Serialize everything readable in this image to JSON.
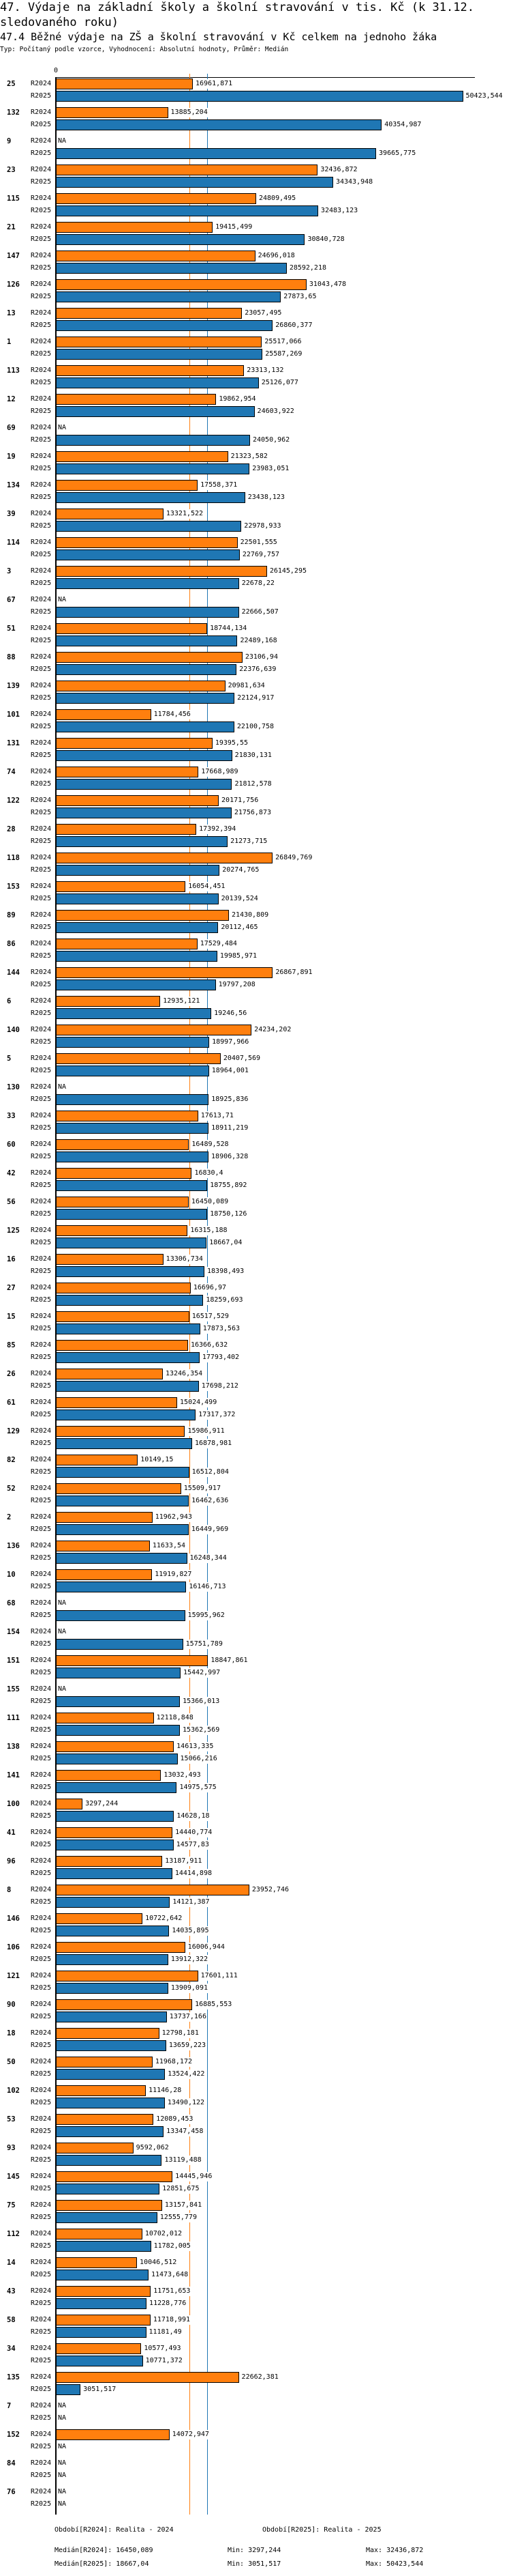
{
  "header": {
    "title": "47. Výdaje na základní školy a školní stravování v tis. Kč (k 31.12. sledovaného roku)",
    "subtitle": "47.4 Běžné výdaje na ZŠ a školní stravování v Kč celkem na jednoho žáka",
    "info": "Typ: Počítaný podle vzorce, Vyhodnocení: Absolutní hodnoty, Průměr: Medián"
  },
  "chart_data": {
    "type": "bar",
    "orientation": "horizontal",
    "title": "47.4 Běžné výdaje na ZŠ a školní stravování v Kč celkem na jednoho žáka",
    "axis_zero_label": "0",
    "xlim": [
      0,
      50423.544
    ],
    "na_label": "NA",
    "series": [
      {
        "name": "R2024",
        "color": "#ff7f0e",
        "median": 16450.089
      },
      {
        "name": "R2025",
        "color": "#1f77b4",
        "median": 18667.04
      }
    ],
    "groups": [
      {
        "id": "25",
        "values": [
          16961.871,
          50423.544
        ]
      },
      {
        "id": "132",
        "values": [
          13885.204,
          40354.987
        ]
      },
      {
        "id": "9",
        "values": [
          null,
          39665.775
        ]
      },
      {
        "id": "23",
        "values": [
          32436.872,
          34343.948
        ]
      },
      {
        "id": "115",
        "values": [
          24809.495,
          32483.123
        ]
      },
      {
        "id": "21",
        "values": [
          19415.499,
          30840.728
        ]
      },
      {
        "id": "147",
        "values": [
          24696.018,
          28592.218
        ]
      },
      {
        "id": "126",
        "values": [
          31043.478,
          27873.65
        ]
      },
      {
        "id": "13",
        "values": [
          23057.495,
          26860.377
        ]
      },
      {
        "id": "1",
        "values": [
          25517.066,
          25587.269
        ]
      },
      {
        "id": "113",
        "values": [
          23313.132,
          25126.077
        ]
      },
      {
        "id": "12",
        "values": [
          19862.954,
          24603.922
        ]
      },
      {
        "id": "69",
        "values": [
          null,
          24050.962
        ]
      },
      {
        "id": "19",
        "values": [
          21323.582,
          23983.051
        ]
      },
      {
        "id": "134",
        "values": [
          17558.371,
          23438.123
        ]
      },
      {
        "id": "39",
        "values": [
          13321.522,
          22978.933
        ]
      },
      {
        "id": "114",
        "values": [
          22501.555,
          22769.757
        ]
      },
      {
        "id": "3",
        "values": [
          26145.295,
          22678.22
        ]
      },
      {
        "id": "67",
        "values": [
          null,
          22666.507
        ]
      },
      {
        "id": "51",
        "values": [
          18744.134,
          22489.168
        ]
      },
      {
        "id": "88",
        "values": [
          23106.94,
          22376.639
        ]
      },
      {
        "id": "139",
        "values": [
          20981.634,
          22124.917
        ]
      },
      {
        "id": "101",
        "values": [
          11784.456,
          22100.758
        ]
      },
      {
        "id": "131",
        "values": [
          19395.55,
          21830.131
        ]
      },
      {
        "id": "74",
        "values": [
          17668.989,
          21812.578
        ]
      },
      {
        "id": "122",
        "values": [
          20171.756,
          21756.873
        ]
      },
      {
        "id": "28",
        "values": [
          17392.394,
          21273.715
        ]
      },
      {
        "id": "118",
        "values": [
          26849.769,
          20274.765
        ]
      },
      {
        "id": "153",
        "values": [
          16054.451,
          20139.524
        ]
      },
      {
        "id": "89",
        "values": [
          21430.809,
          20112.465
        ]
      },
      {
        "id": "86",
        "values": [
          17529.484,
          19985.971
        ]
      },
      {
        "id": "144",
        "values": [
          26867.891,
          19797.208
        ]
      },
      {
        "id": "6",
        "values": [
          12935.121,
          19246.56
        ]
      },
      {
        "id": "140",
        "values": [
          24234.202,
          18997.966
        ]
      },
      {
        "id": "5",
        "values": [
          20407.569,
          18964.001
        ]
      },
      {
        "id": "130",
        "values": [
          null,
          18925.836
        ]
      },
      {
        "id": "33",
        "values": [
          17613.71,
          18911.219
        ]
      },
      {
        "id": "60",
        "values": [
          16489.528,
          18906.328
        ]
      },
      {
        "id": "42",
        "values": [
          16830.4,
          18755.892
        ]
      },
      {
        "id": "56",
        "values": [
          16450.089,
          18750.126
        ]
      },
      {
        "id": "125",
        "values": [
          16315.188,
          18667.04
        ]
      },
      {
        "id": "16",
        "values": [
          13306.734,
          18398.493
        ]
      },
      {
        "id": "27",
        "values": [
          16696.97,
          18259.693
        ]
      },
      {
        "id": "15",
        "values": [
          16517.529,
          17873.563
        ]
      },
      {
        "id": "85",
        "values": [
          16366.632,
          17793.402
        ]
      },
      {
        "id": "26",
        "values": [
          13246.354,
          17698.212
        ]
      },
      {
        "id": "61",
        "values": [
          15024.499,
          17317.372
        ]
      },
      {
        "id": "129",
        "values": [
          15986.911,
          16878.981
        ]
      },
      {
        "id": "82",
        "values": [
          10149.15,
          16512.804
        ]
      },
      {
        "id": "52",
        "values": [
          15509.917,
          16462.636
        ]
      },
      {
        "id": "2",
        "values": [
          11962.943,
          16449.969
        ]
      },
      {
        "id": "136",
        "values": [
          11633.54,
          16248.344
        ]
      },
      {
        "id": "10",
        "values": [
          11919.827,
          16146.713
        ]
      },
      {
        "id": "68",
        "values": [
          null,
          15995.962
        ]
      },
      {
        "id": "154",
        "values": [
          null,
          15751.789
        ]
      },
      {
        "id": "151",
        "values": [
          18847.861,
          15442.997
        ]
      },
      {
        "id": "155",
        "values": [
          null,
          15366.013
        ]
      },
      {
        "id": "111",
        "values": [
          12118.848,
          15362.569
        ]
      },
      {
        "id": "138",
        "values": [
          14613.335,
          15066.216
        ]
      },
      {
        "id": "141",
        "values": [
          13032.493,
          14975.575
        ]
      },
      {
        "id": "100",
        "values": [
          3297.244,
          14628.18
        ]
      },
      {
        "id": "41",
        "values": [
          14440.774,
          14577.83
        ]
      },
      {
        "id": "96",
        "values": [
          13187.911,
          14414.898
        ]
      },
      {
        "id": "8",
        "values": [
          23952.746,
          14121.387
        ]
      },
      {
        "id": "146",
        "values": [
          10722.642,
          14035.895
        ]
      },
      {
        "id": "106",
        "values": [
          16006.944,
          13912.322
        ]
      },
      {
        "id": "121",
        "values": [
          17601.111,
          13909.091
        ]
      },
      {
        "id": "90",
        "values": [
          16885.553,
          13737.166
        ]
      },
      {
        "id": "18",
        "values": [
          12798.181,
          13659.223
        ]
      },
      {
        "id": "50",
        "values": [
          11968.172,
          13524.422
        ]
      },
      {
        "id": "102",
        "values": [
          11146.28,
          13490.122
        ]
      },
      {
        "id": "53",
        "values": [
          12089.453,
          13347.458
        ]
      },
      {
        "id": "93",
        "values": [
          9592.062,
          13119.488
        ]
      },
      {
        "id": "145",
        "values": [
          14445.946,
          12851.675
        ]
      },
      {
        "id": "75",
        "values": [
          13157.841,
          12555.779
        ]
      },
      {
        "id": "112",
        "values": [
          10702.012,
          11782.005
        ]
      },
      {
        "id": "14",
        "values": [
          10046.512,
          11473.648
        ]
      },
      {
        "id": "43",
        "values": [
          11751.653,
          11228.776
        ]
      },
      {
        "id": "58",
        "values": [
          11718.991,
          11181.49
        ]
      },
      {
        "id": "34",
        "values": [
          10577.493,
          10771.372
        ]
      },
      {
        "id": "135",
        "values": [
          22662.381,
          3051.517
        ]
      },
      {
        "id": "7",
        "values": [
          null,
          null
        ]
      },
      {
        "id": "152",
        "values": [
          14072.947,
          null
        ]
      },
      {
        "id": "84",
        "values": [
          null,
          null
        ]
      },
      {
        "id": "76",
        "values": [
          null,
          null
        ]
      }
    ]
  },
  "footer": {
    "period_2024": "Období[R2024]: Realita - 2024",
    "period_2025": "Období[R2025]: Realita - 2025",
    "median_2024": "Medián[R2024]: 16450,089",
    "median_2025": "Medián[R2025]: 18667,04",
    "min_2024": "Min: 3297,244",
    "min_2025": "Min: 3051,517",
    "max_2024": "Max: 32436,872",
    "max_2025": "Max: 50423,544"
  }
}
